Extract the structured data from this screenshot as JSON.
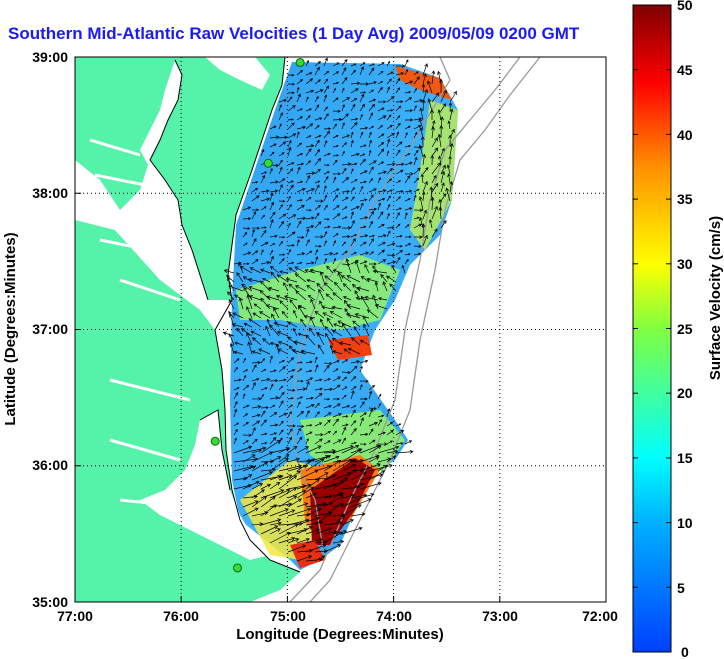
{
  "title": "Southern Mid-Atlantic Raw Velocities (1 Day Avg) 2009/05/09 0200 GMT",
  "map": {
    "xlabel": "Longitude (Degrees:Minutes)",
    "ylabel": "Latitude (Degrees:Minutes)",
    "x_ticks": [
      "77:00",
      "76:00",
      "75:00",
      "74:00",
      "73:00",
      "72:00"
    ],
    "y_ticks": [
      "39:00",
      "38:00",
      "37:00",
      "36:00",
      "35:00"
    ],
    "lon_range": [
      -77,
      -72
    ],
    "lat_range": [
      35,
      39
    ],
    "land_color": "#55f2aa",
    "grid": true,
    "grid_style": "dotted"
  },
  "colorbar": {
    "label": "Surface Velocity (cm/s)",
    "ticks": [
      "50",
      "45",
      "40",
      "35",
      "30",
      "25",
      "20",
      "15",
      "10",
      "5",
      "0"
    ],
    "min": 0,
    "max": 50,
    "colormap": "jet"
  },
  "stations": [
    {
      "lon": -74.88,
      "lat": 38.96
    },
    {
      "lon": -75.18,
      "lat": 38.22
    },
    {
      "lon": -75.68,
      "lat": 36.18
    },
    {
      "lon": -75.47,
      "lat": 35.25
    }
  ]
}
